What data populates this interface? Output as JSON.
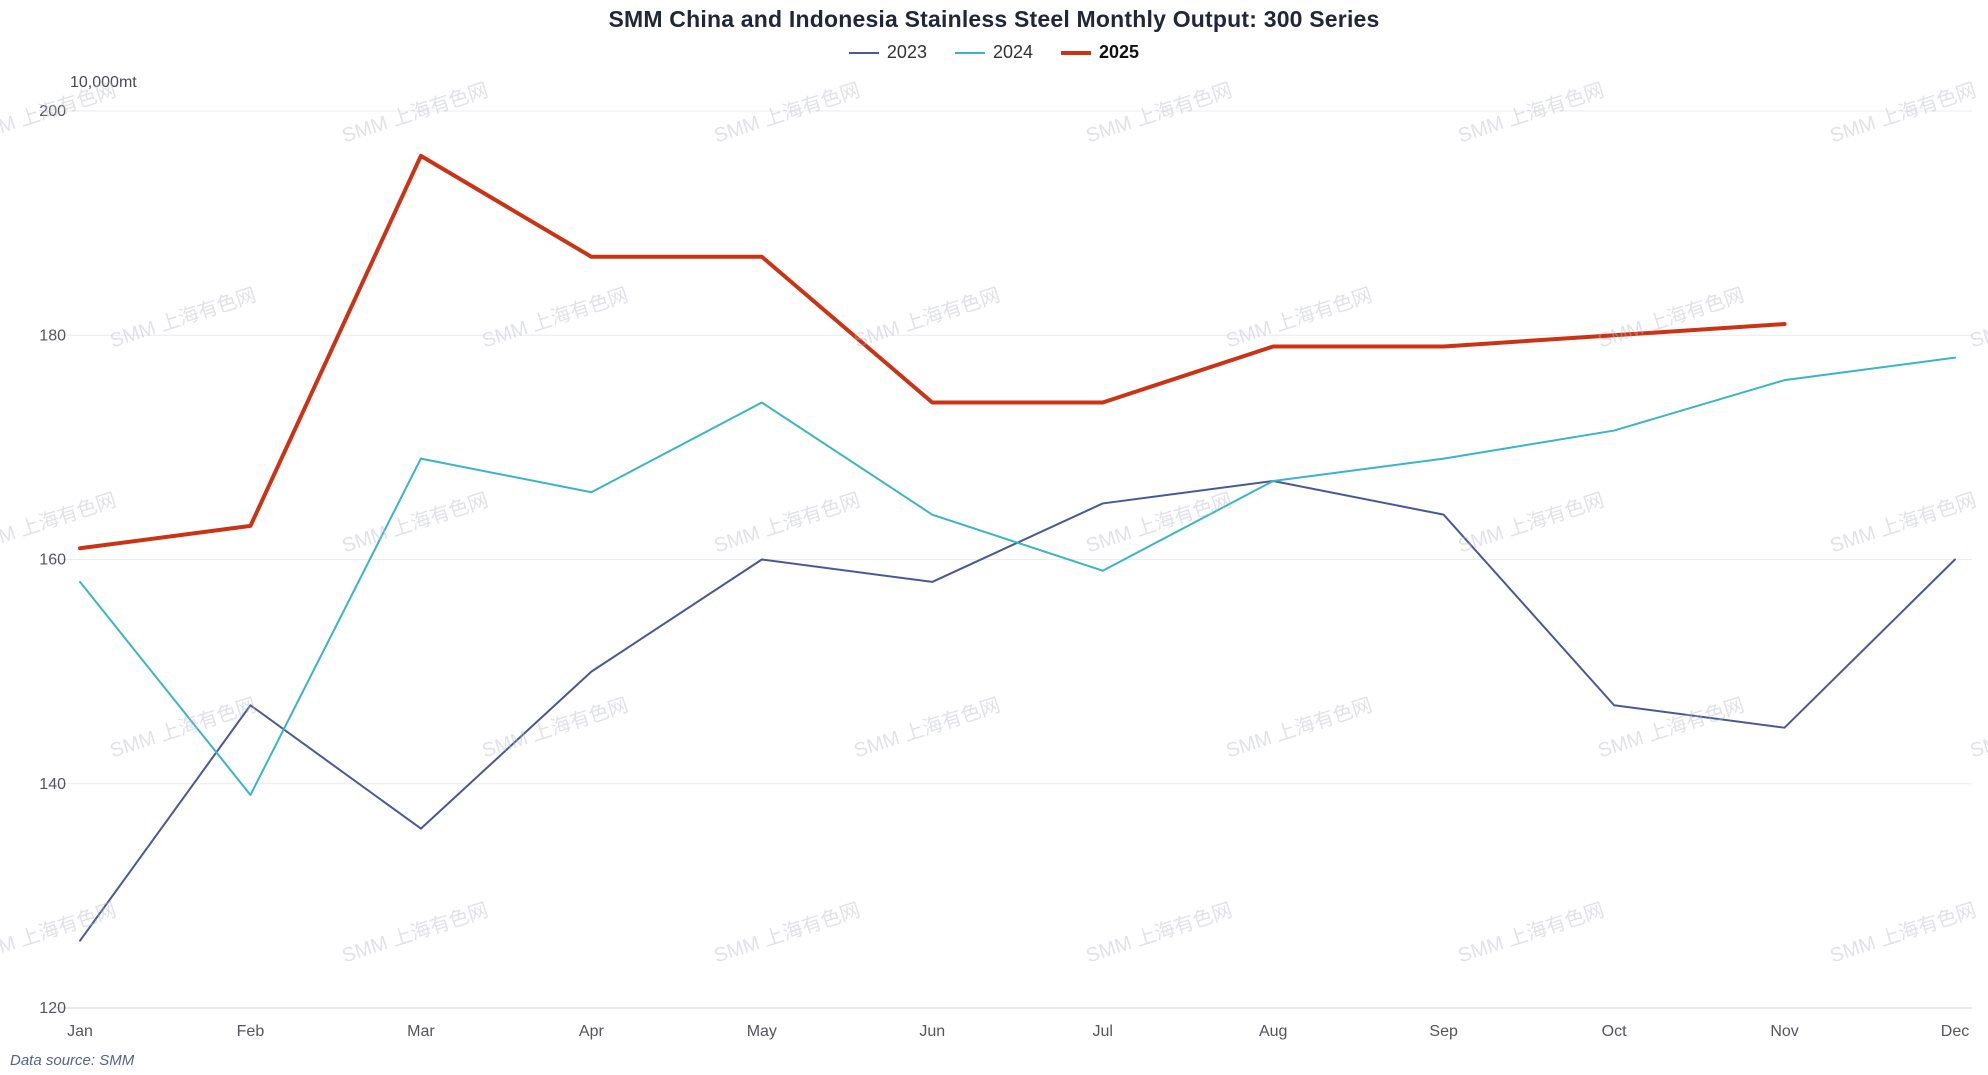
{
  "title": "SMM China and Indonesia Stainless Steel Monthly Output: 300 Series",
  "unit_label": "10,000mt",
  "source_label": "Data source:  SMM",
  "watermark_text": "SMM 上海有色网",
  "legend": [
    {
      "label": "2023",
      "color": "#4a5899",
      "bold": false,
      "line_width": 2
    },
    {
      "label": "2024",
      "color": "#38b6c6",
      "bold": false,
      "line_width": 2
    },
    {
      "label": "2025",
      "color": "#cc3214",
      "bold": true,
      "line_width": 4
    }
  ],
  "chart_data": {
    "type": "line",
    "categories": [
      "Jan",
      "Feb",
      "Mar",
      "Apr",
      "May",
      "Jun",
      "Jul",
      "Aug",
      "Sep",
      "Oct",
      "Nov",
      "Dec"
    ],
    "series": [
      {
        "name": "2023",
        "color": "#4a5899",
        "width": 2,
        "values": [
          126,
          147,
          136,
          150,
          160,
          158,
          165,
          167,
          164,
          147,
          145,
          160
        ]
      },
      {
        "name": "2024",
        "color": "#38b6c6",
        "width": 2,
        "values": [
          158,
          139,
          169,
          166,
          174,
          164,
          159,
          167,
          169,
          171.5,
          176,
          178
        ]
      },
      {
        "name": "2025",
        "color": "#cc3214",
        "width": 4,
        "values": [
          161,
          163,
          196,
          187,
          187,
          174,
          174,
          179,
          179,
          180,
          181,
          null
        ]
      }
    ],
    "ylim": [
      120,
      200
    ],
    "yticks": [
      120,
      140,
      160,
      180,
      200
    ],
    "grid": true,
    "legend_position": "top"
  }
}
